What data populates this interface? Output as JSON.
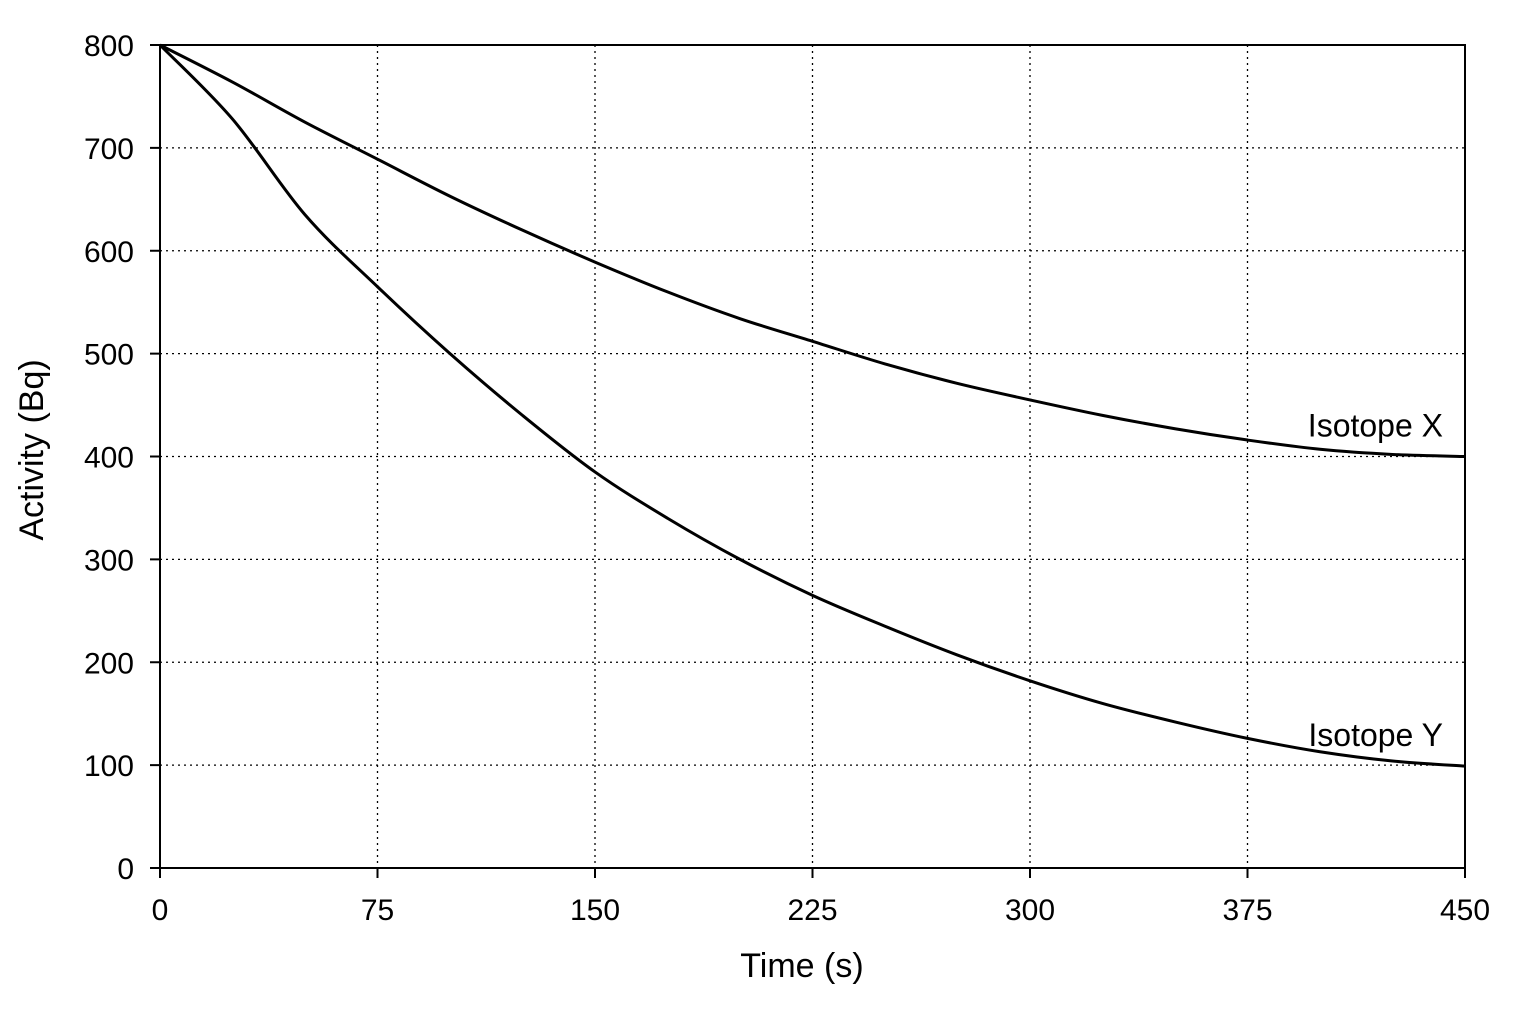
{
  "chart_data": {
    "type": "line",
    "title": "",
    "xlabel": "Time (s)",
    "ylabel": "Activity (Bq)",
    "xlim": [
      0,
      450
    ],
    "ylim": [
      0,
      800
    ],
    "x_ticks": [
      "0",
      "75",
      "150",
      "225",
      "300",
      "375",
      "450"
    ],
    "y_ticks": [
      "0",
      "100",
      "200",
      "300",
      "400",
      "500",
      "600",
      "700",
      "800"
    ],
    "grid": true,
    "legend": "none",
    "series": [
      {
        "name": "Isotope X",
        "x": [
          0,
          25,
          50,
          75,
          100,
          125,
          150,
          175,
          200,
          225,
          250,
          275,
          300,
          325,
          350,
          375,
          400,
          425,
          450
        ],
        "y": [
          800,
          764,
          725,
          689,
          653,
          620,
          589,
          560,
          534,
          512,
          490,
          471,
          455,
          440,
          427,
          416,
          407,
          402,
          400
        ]
      },
      {
        "name": "Isotope Y",
        "x": [
          0,
          25,
          50,
          75,
          100,
          125,
          150,
          175,
          200,
          225,
          250,
          275,
          300,
          325,
          350,
          375,
          400,
          425,
          450
        ],
        "y": [
          800,
          728,
          635,
          565,
          500,
          440,
          385,
          340,
          300,
          265,
          235,
          207,
          182,
          160,
          142,
          126,
          113,
          104,
          99
        ]
      }
    ]
  }
}
